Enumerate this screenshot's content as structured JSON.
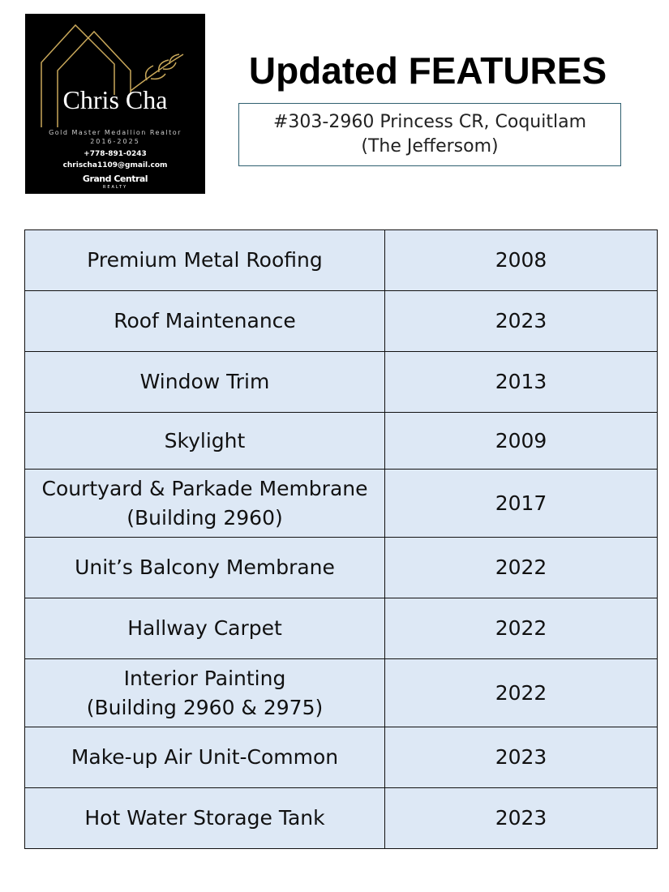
{
  "logo": {
    "name": "Chris Cha",
    "designation": "Gold Master Medallion Realtor",
    "years": "2016-2025",
    "phone": "+778-891-0243",
    "email": "chrischa1109@gmail.com",
    "brokerage": "Grand Central",
    "brokerage_sub": "REALTY"
  },
  "header": {
    "title": "Updated FEATURES",
    "address": [
      "#303-2960 Princess CR, Coquitlam",
      "(The Jeffersom)"
    ]
  },
  "table": {
    "rows": [
      {
        "feature": [
          "Premium Metal Roofing"
        ],
        "year": 2008
      },
      {
        "feature": [
          "Roof Maintenance"
        ],
        "year": 2023
      },
      {
        "feature": [
          "Window Trim"
        ],
        "year": 2013
      },
      {
        "feature": [
          "Skylight"
        ],
        "year": 2009
      },
      {
        "feature": [
          "Courtyard & Parkade Membrane",
          "(Building 2960)"
        ],
        "year": 2017
      },
      {
        "feature": [
          "Unit’s Balcony Membrane"
        ],
        "year": 2022
      },
      {
        "feature": [
          "Hallway Carpet"
        ],
        "year": 2022
      },
      {
        "feature": [
          "Interior Painting",
          "(Building 2960 & 2975)"
        ],
        "year": 2022
      },
      {
        "feature": [
          "Make-up Air Unit-Common"
        ],
        "year": 2023
      },
      {
        "feature": [
          "Hot Water Storage Tank"
        ],
        "year": 2023
      }
    ]
  }
}
